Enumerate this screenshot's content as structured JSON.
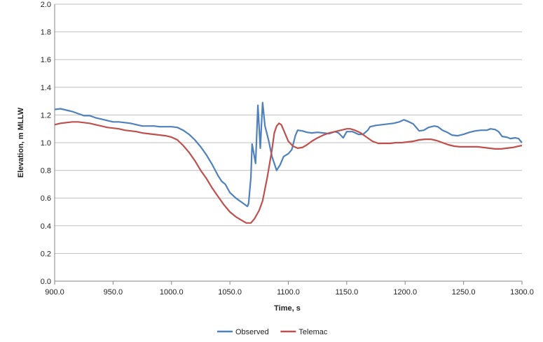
{
  "chart_data": {
    "type": "line",
    "xlabel": "Time, s",
    "ylabel": "Elevation, m MLLW",
    "xlim": [
      900,
      1300
    ],
    "ylim": [
      0,
      2
    ],
    "x_ticks": [
      "900.0",
      "950.0",
      "1000.0",
      "1050.0",
      "1100.0",
      "1150.0",
      "1200.0",
      "1250.0",
      "1300.0"
    ],
    "y_ticks": [
      "0.0",
      "0.2",
      "0.4",
      "0.6",
      "0.8",
      "1.0",
      "1.2",
      "1.4",
      "1.6",
      "1.8",
      "2.0"
    ],
    "grid": "horizontal",
    "legend_position": "bottom-center",
    "series": [
      {
        "name": "Observed",
        "color": "#4f81bd",
        "points": [
          [
            900,
            1.24
          ],
          [
            905,
            1.245
          ],
          [
            910,
            1.235
          ],
          [
            915,
            1.225
          ],
          [
            920,
            1.21
          ],
          [
            925,
            1.195
          ],
          [
            930,
            1.195
          ],
          [
            935,
            1.18
          ],
          [
            940,
            1.17
          ],
          [
            945,
            1.16
          ],
          [
            950,
            1.15
          ],
          [
            955,
            1.15
          ],
          [
            960,
            1.145
          ],
          [
            965,
            1.14
          ],
          [
            970,
            1.13
          ],
          [
            975,
            1.12
          ],
          [
            980,
            1.12
          ],
          [
            985,
            1.12
          ],
          [
            990,
            1.115
          ],
          [
            995,
            1.115
          ],
          [
            1000,
            1.115
          ],
          [
            1005,
            1.11
          ],
          [
            1010,
            1.09
          ],
          [
            1015,
            1.06
          ],
          [
            1020,
            1.02
          ],
          [
            1025,
            0.97
          ],
          [
            1030,
            0.91
          ],
          [
            1035,
            0.84
          ],
          [
            1040,
            0.76
          ],
          [
            1043,
            0.72
          ],
          [
            1046,
            0.7
          ],
          [
            1050,
            0.64
          ],
          [
            1055,
            0.6
          ],
          [
            1060,
            0.57
          ],
          [
            1065,
            0.54
          ],
          [
            1066,
            0.56
          ],
          [
            1068,
            0.75
          ],
          [
            1069,
            0.99
          ],
          [
            1072,
            0.85
          ],
          [
            1074,
            1.27
          ],
          [
            1076,
            0.96
          ],
          [
            1078,
            1.29
          ],
          [
            1080,
            1.12
          ],
          [
            1083,
            1.02
          ],
          [
            1086,
            0.9
          ],
          [
            1090,
            0.8
          ],
          [
            1093,
            0.84
          ],
          [
            1096,
            0.9
          ],
          [
            1100,
            0.92
          ],
          [
            1103,
            0.95
          ],
          [
            1106,
            1.05
          ],
          [
            1108,
            1.09
          ],
          [
            1112,
            1.085
          ],
          [
            1116,
            1.075
          ],
          [
            1120,
            1.07
          ],
          [
            1125,
            1.075
          ],
          [
            1130,
            1.07
          ],
          [
            1135,
            1.065
          ],
          [
            1140,
            1.08
          ],
          [
            1143,
            1.07
          ],
          [
            1147,
            1.035
          ],
          [
            1150,
            1.08
          ],
          [
            1155,
            1.08
          ],
          [
            1160,
            1.06
          ],
          [
            1164,
            1.06
          ],
          [
            1168,
            1.09
          ],
          [
            1170,
            1.115
          ],
          [
            1175,
            1.125
          ],
          [
            1180,
            1.13
          ],
          [
            1185,
            1.135
          ],
          [
            1190,
            1.14
          ],
          [
            1195,
            1.15
          ],
          [
            1199,
            1.165
          ],
          [
            1202,
            1.155
          ],
          [
            1207,
            1.135
          ],
          [
            1212,
            1.085
          ],
          [
            1216,
            1.09
          ],
          [
            1220,
            1.11
          ],
          [
            1225,
            1.12
          ],
          [
            1228,
            1.115
          ],
          [
            1232,
            1.09
          ],
          [
            1236,
            1.075
          ],
          [
            1240,
            1.055
          ],
          [
            1245,
            1.05
          ],
          [
            1250,
            1.06
          ],
          [
            1255,
            1.075
          ],
          [
            1260,
            1.085
          ],
          [
            1265,
            1.09
          ],
          [
            1270,
            1.09
          ],
          [
            1273,
            1.1
          ],
          [
            1277,
            1.095
          ],
          [
            1280,
            1.08
          ],
          [
            1283,
            1.045
          ],
          [
            1287,
            1.04
          ],
          [
            1290,
            1.03
          ],
          [
            1294,
            1.035
          ],
          [
            1297,
            1.03
          ],
          [
            1300,
            1.0
          ]
        ]
      },
      {
        "name": "Telemac",
        "color": "#c0504d",
        "points": [
          [
            900,
            1.13
          ],
          [
            905,
            1.14
          ],
          [
            910,
            1.145
          ],
          [
            915,
            1.15
          ],
          [
            920,
            1.15
          ],
          [
            925,
            1.145
          ],
          [
            930,
            1.14
          ],
          [
            935,
            1.13
          ],
          [
            940,
            1.12
          ],
          [
            945,
            1.11
          ],
          [
            950,
            1.105
          ],
          [
            955,
            1.1
          ],
          [
            960,
            1.09
          ],
          [
            965,
            1.085
          ],
          [
            970,
            1.08
          ],
          [
            975,
            1.07
          ],
          [
            980,
            1.065
          ],
          [
            985,
            1.06
          ],
          [
            990,
            1.055
          ],
          [
            995,
            1.05
          ],
          [
            1000,
            1.04
          ],
          [
            1005,
            1.02
          ],
          [
            1010,
            0.98
          ],
          [
            1015,
            0.93
          ],
          [
            1020,
            0.87
          ],
          [
            1025,
            0.8
          ],
          [
            1030,
            0.74
          ],
          [
            1035,
            0.67
          ],
          [
            1040,
            0.61
          ],
          [
            1045,
            0.55
          ],
          [
            1050,
            0.5
          ],
          [
            1055,
            0.465
          ],
          [
            1060,
            0.44
          ],
          [
            1064,
            0.42
          ],
          [
            1068,
            0.42
          ],
          [
            1071,
            0.45
          ],
          [
            1075,
            0.51
          ],
          [
            1078,
            0.58
          ],
          [
            1082,
            0.75
          ],
          [
            1086,
            0.95
          ],
          [
            1088,
            1.07
          ],
          [
            1090,
            1.12
          ],
          [
            1092,
            1.14
          ],
          [
            1094,
            1.13
          ],
          [
            1097,
            1.07
          ],
          [
            1100,
            1.01
          ],
          [
            1104,
            0.975
          ],
          [
            1108,
            0.96
          ],
          [
            1112,
            0.965
          ],
          [
            1116,
            0.985
          ],
          [
            1120,
            1.01
          ],
          [
            1125,
            1.035
          ],
          [
            1130,
            1.055
          ],
          [
            1135,
            1.07
          ],
          [
            1140,
            1.08
          ],
          [
            1145,
            1.09
          ],
          [
            1150,
            1.1
          ],
          [
            1153,
            1.1
          ],
          [
            1157,
            1.09
          ],
          [
            1162,
            1.07
          ],
          [
            1167,
            1.04
          ],
          [
            1172,
            1.01
          ],
          [
            1177,
            0.995
          ],
          [
            1182,
            0.995
          ],
          [
            1187,
            0.995
          ],
          [
            1192,
            1.0
          ],
          [
            1197,
            1.0
          ],
          [
            1202,
            1.005
          ],
          [
            1207,
            1.01
          ],
          [
            1212,
            1.02
          ],
          [
            1217,
            1.025
          ],
          [
            1222,
            1.025
          ],
          [
            1227,
            1.015
          ],
          [
            1232,
            1.0
          ],
          [
            1237,
            0.985
          ],
          [
            1242,
            0.975
          ],
          [
            1247,
            0.97
          ],
          [
            1252,
            0.97
          ],
          [
            1257,
            0.97
          ],
          [
            1262,
            0.97
          ],
          [
            1267,
            0.965
          ],
          [
            1272,
            0.96
          ],
          [
            1277,
            0.955
          ],
          [
            1282,
            0.955
          ],
          [
            1287,
            0.96
          ],
          [
            1292,
            0.965
          ],
          [
            1297,
            0.975
          ],
          [
            1300,
            0.98
          ]
        ]
      }
    ]
  }
}
